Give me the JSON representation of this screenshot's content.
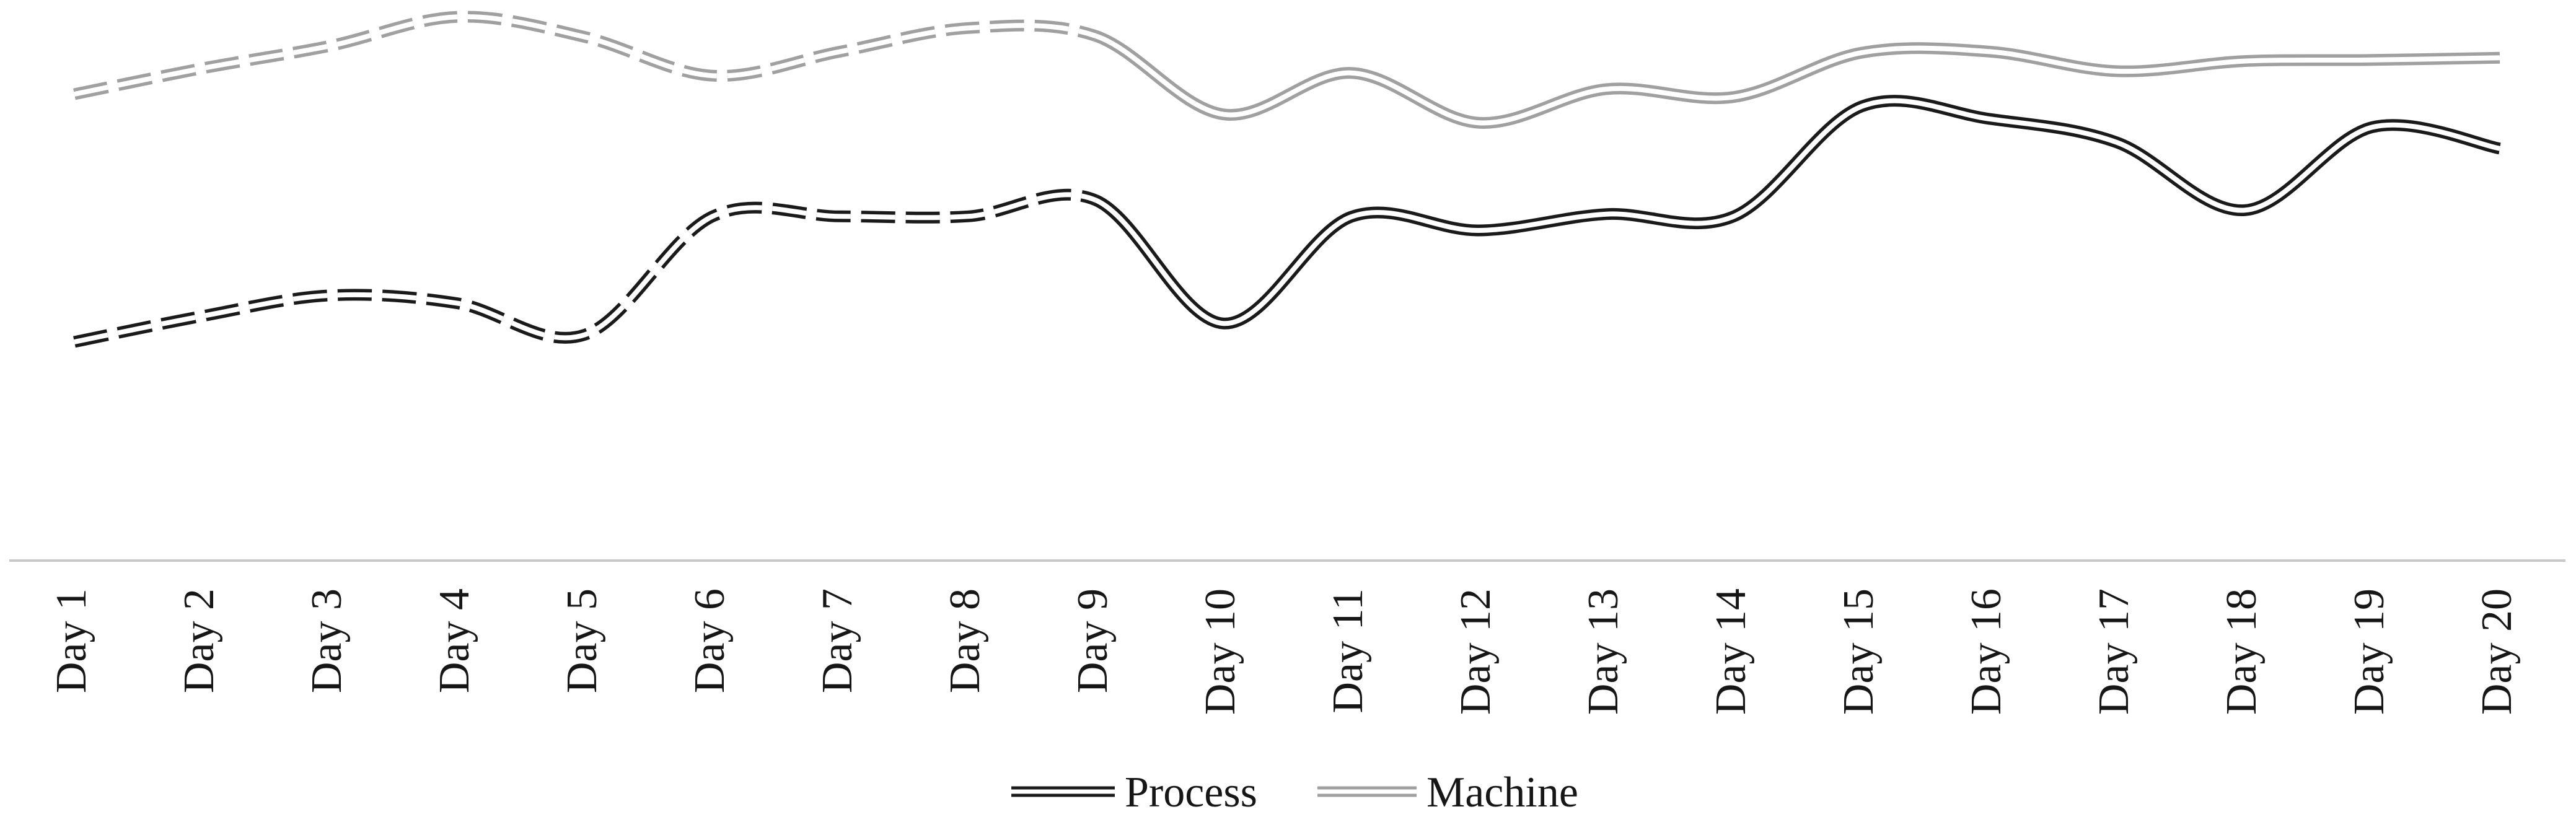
{
  "chart_data": {
    "type": "line",
    "title": "",
    "xlabel": "",
    "ylabel": "",
    "categories": [
      "Day 1",
      "Day 2",
      "Day 3",
      "Day 4",
      "Day 5",
      "Day 6",
      "Day 7",
      "Day 8",
      "Day 9",
      "Day 10",
      "Day 11",
      "Day 12",
      "Day 13",
      "Day 14",
      "Day 15",
      "Day 16",
      "Day 17",
      "Day 18",
      "Day 19",
      "Day 20"
    ],
    "series": [
      {
        "name": "Process",
        "color": "#1a1a1a",
        "values": [
          39.0,
          43.6,
          47.3,
          45.9,
          40.3,
          61.4,
          61.4,
          61.4,
          64.3,
          42.3,
          61.3,
          58.9,
          61.8,
          61.4,
          81.0,
          78.8,
          74.6,
          62.5,
          77.3,
          73.5
        ]
      },
      {
        "name": "Machine",
        "color": "#a0a0a0",
        "values": [
          83.2,
          87.8,
          91.8,
          97.0,
          93.4,
          86.5,
          90.8,
          95.0,
          93.6,
          79.6,
          87.0,
          78.1,
          84.1,
          82.7,
          90.6,
          90.8,
          87.3,
          89.1,
          89.3,
          89.7
        ]
      }
    ],
    "style": {
      "smooth": true,
      "double_line": true,
      "dashed_until_index": 8,
      "dash_pattern": [
        55,
        17
      ],
      "note": "Both series drawn dashed from Day 1 through Day 9, solid from Day 9 through Day 20. Values are normalized 0-100 of plot height; no y-axis is shown."
    },
    "axes": {
      "y_axis_visible": false,
      "x_axis_line_color": "#c8c8c8",
      "x_tick_label_rotation_deg": -90,
      "ylim": [
        0,
        100
      ],
      "grid": false
    },
    "legend": {
      "position": "bottom-center",
      "entries": [
        "Process",
        "Machine"
      ]
    }
  },
  "colors": {
    "background": "#ffffff",
    "text": "#161616",
    "process_line": "#1a1a1a",
    "machine_line": "#a0a0a0",
    "axis_line": "#c8c8c8"
  }
}
